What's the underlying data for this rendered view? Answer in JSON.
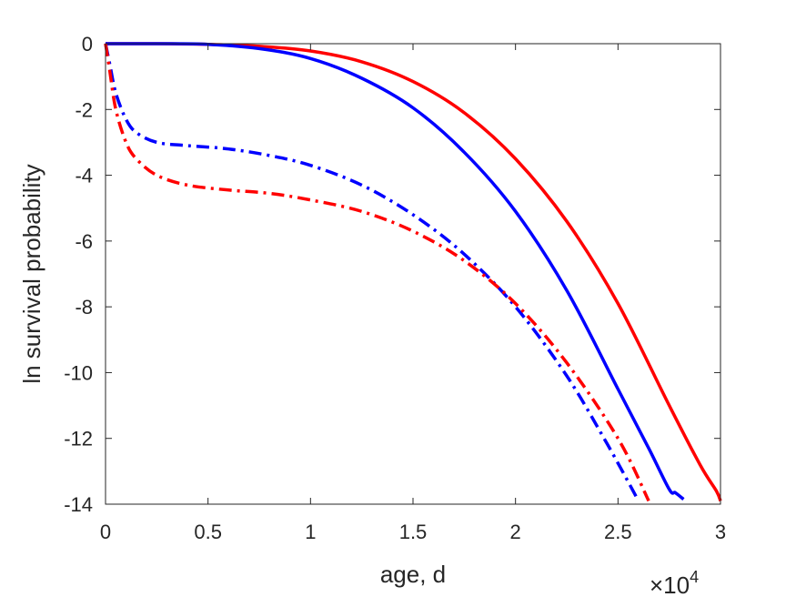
{
  "chart_data": {
    "type": "line",
    "xlabel": "age, d",
    "ylabel": "ln survival probability",
    "x_exponent_base": "×10",
    "x_exponent_power": "4",
    "xlim": [
      0,
      30000
    ],
    "ylim": [
      -14,
      0
    ],
    "xticks": [
      {
        "value": 0,
        "label": "0"
      },
      {
        "value": 5000,
        "label": "0.5"
      },
      {
        "value": 10000,
        "label": "1"
      },
      {
        "value": 15000,
        "label": "1.5"
      },
      {
        "value": 20000,
        "label": "2"
      },
      {
        "value": 25000,
        "label": "2.5"
      },
      {
        "value": 30000,
        "label": "3"
      }
    ],
    "yticks": [
      {
        "value": 0,
        "label": "0"
      },
      {
        "value": -2,
        "label": "-2"
      },
      {
        "value": -4,
        "label": "-4"
      },
      {
        "value": -6,
        "label": "-6"
      },
      {
        "value": -8,
        "label": "-8"
      },
      {
        "value": -10,
        "label": "-10"
      },
      {
        "value": -12,
        "label": "-12"
      },
      {
        "value": -14,
        "label": "-14"
      }
    ],
    "grid": false,
    "series": [
      {
        "color": "#ff0000",
        "dash": "solid",
        "x": [
          0,
          2500,
          5000,
          7500,
          10000,
          12500,
          15000,
          17500,
          20000,
          22500,
          25000,
          27500,
          29000,
          29800,
          30000
        ],
        "y": [
          0,
          0,
          -0.02,
          -0.08,
          -0.22,
          -0.55,
          -1.15,
          -2.1,
          -3.5,
          -5.4,
          -7.9,
          -11.0,
          -12.8,
          -13.6,
          -13.9
        ]
      },
      {
        "color": "#0000ff",
        "dash": "solid",
        "x": [
          0,
          2500,
          5000,
          7500,
          10000,
          12500,
          15000,
          17500,
          20000,
          22500,
          25000,
          26500,
          27500,
          27800,
          28200
        ],
        "y": [
          0,
          0,
          -0.02,
          -0.15,
          -0.45,
          -1.05,
          -1.95,
          -3.3,
          -5.1,
          -7.5,
          -10.5,
          -12.3,
          -13.55,
          -13.65,
          -13.85
        ]
      },
      {
        "color": "#0000ff",
        "dash": "dashdot",
        "x": [
          0,
          200,
          500,
          1000,
          1500,
          2500,
          4000,
          6000,
          8000,
          10000,
          12500,
          15000,
          17500,
          20000,
          22500,
          24500,
          26000
        ],
        "y": [
          0,
          -0.6,
          -1.5,
          -2.3,
          -2.7,
          -3.0,
          -3.1,
          -3.2,
          -3.4,
          -3.7,
          -4.3,
          -5.2,
          -6.4,
          -8.0,
          -10.1,
          -12.2,
          -13.9
        ]
      },
      {
        "color": "#ff0000",
        "dash": "dashdot",
        "x": [
          0,
          200,
          500,
          1000,
          1500,
          2500,
          4000,
          6000,
          8000,
          10000,
          12500,
          15000,
          17500,
          20000,
          22500,
          25000,
          26500
        ],
        "y": [
          0,
          -0.8,
          -2.0,
          -3.0,
          -3.5,
          -4.0,
          -4.3,
          -4.45,
          -4.55,
          -4.75,
          -5.1,
          -5.7,
          -6.6,
          -7.9,
          -9.7,
          -12.0,
          -13.9
        ]
      }
    ]
  }
}
